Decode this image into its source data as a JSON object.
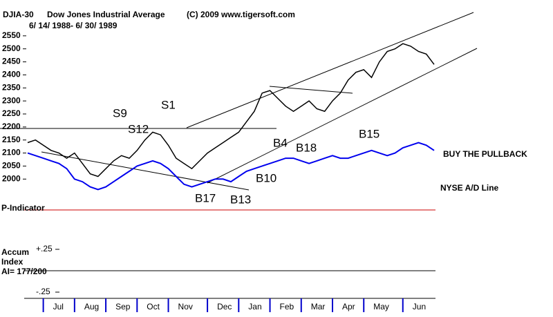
{
  "chart_data": {
    "type": "line",
    "title": "Dow Jones Industrial Average",
    "subtitle": "6/ 14/ 1988- 6/ 30/ 1989",
    "source": "(C) 2009 www.tigersoft.com",
    "categories": [
      null,
      null,
      "Jul",
      null,
      null,
      null,
      "Aug",
      null,
      null,
      null,
      "Sep",
      null,
      null,
      null,
      "Oct",
      null,
      null,
      null,
      "Nov",
      null,
      null,
      null,
      null,
      "Dec",
      null,
      null,
      null,
      "Jan",
      null,
      null,
      null,
      "Feb",
      null,
      null,
      null,
      "Mar",
      null,
      null,
      null,
      "Apr",
      null,
      null,
      null,
      "May",
      null,
      null,
      null,
      null,
      "Jun",
      null,
      null,
      null,
      null
    ],
    "series": [
      {
        "name": "DJIA-30",
        "color": "#000000",
        "values": [
          2140,
          2150,
          2130,
          2110,
          2100,
          2080,
          2100,
          2060,
          2020,
          2010,
          2040,
          2070,
          2090,
          2080,
          2110,
          2150,
          2180,
          2170,
          2130,
          2080,
          2060,
          2040,
          2070,
          2100,
          2120,
          2140,
          2160,
          2180,
          2220,
          2260,
          2330,
          2340,
          2310,
          2280,
          2260,
          2280,
          2300,
          2270,
          2260,
          2300,
          2330,
          2380,
          2410,
          2420,
          2390,
          2450,
          2490,
          2500,
          2520,
          2510,
          2490,
          2480,
          2440
        ]
      },
      {
        "name": "NYSE A/D Line",
        "color": "#0000ee",
        "values": [
          2100,
          2090,
          2080,
          2070,
          2060,
          2040,
          2000,
          1990,
          1970,
          1960,
          1970,
          1990,
          2010,
          2030,
          2050,
          2060,
          2070,
          2060,
          2040,
          2010,
          1980,
          1970,
          1980,
          1990,
          2000,
          2000,
          1990,
          2010,
          2030,
          2040,
          2050,
          2060,
          2070,
          2080,
          2080,
          2070,
          2060,
          2070,
          2080,
          2090,
          2080,
          2080,
          2090,
          2100,
          2110,
          2100,
          2090,
          2100,
          2120,
          2130,
          2140,
          2130,
          2110
        ]
      }
    ],
    "ylim": [
      1900,
      2600
    ],
    "yticks": [
      2000,
      2050,
      2100,
      2150,
      2200,
      2250,
      2300,
      2350,
      2400,
      2450,
      2500,
      2550
    ],
    "grid": false,
    "annotations": [
      "S9",
      "S12",
      "S1",
      "B4",
      "B18",
      "B15",
      "B10",
      "B17",
      "B13",
      "BUY THE PULLBACK",
      "P-Indicator",
      "Accum",
      "Index",
      "AI= 177/200"
    ],
    "accum_ticks": [
      {
        "value": 0.25,
        "label": "+.25"
      },
      {
        "value": -0.25,
        "label": "-.25"
      }
    ]
  }
}
